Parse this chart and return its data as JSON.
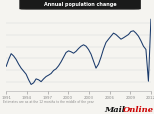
{
  "title": "Annual population change",
  "xlabel_note": "Estimates are as at the 12 months to the middle of the year",
  "line_color": "#1a3a6b",
  "background_color": "#f5f4f0",
  "plot_bg": "#f5f4f0",
  "title_bg": "#1a1a1a",
  "title_color": "#ffffff",
  "grid_color": "#d8d8d8",
  "x_ticks": [
    "1991",
    "1994",
    "1997",
    "2000",
    "2003",
    "2006",
    "2009",
    "2012"
  ],
  "y_values": [
    165,
    195,
    220,
    210,
    195,
    175,
    158,
    145,
    132,
    108,
    88,
    95,
    112,
    108,
    100,
    112,
    122,
    128,
    135,
    148,
    155,
    168,
    185,
    205,
    225,
    232,
    228,
    222,
    230,
    242,
    252,
    258,
    252,
    238,
    218,
    188,
    158,
    175,
    205,
    240,
    268,
    282,
    295,
    308,
    302,
    292,
    282,
    288,
    295,
    302,
    315,
    318,
    308,
    295,
    275,
    252,
    238,
    102,
    368
  ],
  "ylim": [
    60,
    400
  ],
  "figsize": [
    1.54,
    1.15
  ],
  "dpi": 100
}
